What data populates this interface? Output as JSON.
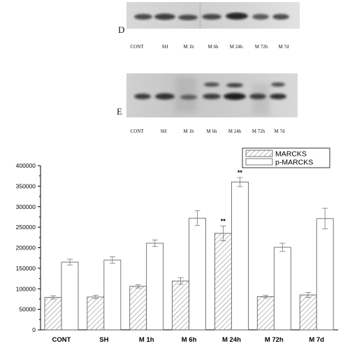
{
  "blots": [
    {
      "letter": "D",
      "lanes": [
        "CONT",
        "SH",
        "M 1h",
        "M 6h",
        "M 24h",
        "M 72h",
        "M 7d"
      ]
    },
    {
      "letter": "E",
      "lanes": [
        "CONT",
        "SH",
        "M 1h",
        "M 6h",
        "M 24h",
        "M 72h",
        "M 7d"
      ]
    }
  ],
  "chart_data": {
    "type": "bar",
    "categories": [
      "CONT",
      "SH",
      "M 1h",
      "M 6h",
      "M 24h",
      "M 72h",
      "M 7d"
    ],
    "series": [
      {
        "name": "MARCKS",
        "pattern": "hatched",
        "values": [
          79000,
          80000,
          106000,
          119000,
          235000,
          81000,
          85000
        ],
        "errors": [
          4000,
          4000,
          4000,
          8000,
          18000,
          3000,
          6000
        ],
        "annotations": [
          "",
          "",
          "",
          "",
          "**",
          "",
          ""
        ]
      },
      {
        "name": "p-MARCKS",
        "pattern": "open",
        "values": [
          165000,
          170000,
          211000,
          272000,
          360000,
          201000,
          271000
        ],
        "errors": [
          7000,
          8000,
          8000,
          18000,
          11000,
          10000,
          25000
        ],
        "annotations": [
          "",
          "",
          "",
          "",
          "**",
          "",
          ""
        ]
      }
    ],
    "ylim": [
      0,
      400000
    ],
    "yticks": [
      "0",
      "50000",
      "100000",
      "150000",
      "200000",
      "250000",
      "300000",
      "350000",
      "400000"
    ],
    "xlabel": "",
    "ylabel": "",
    "legend_position": "top-right",
    "grid": false
  }
}
